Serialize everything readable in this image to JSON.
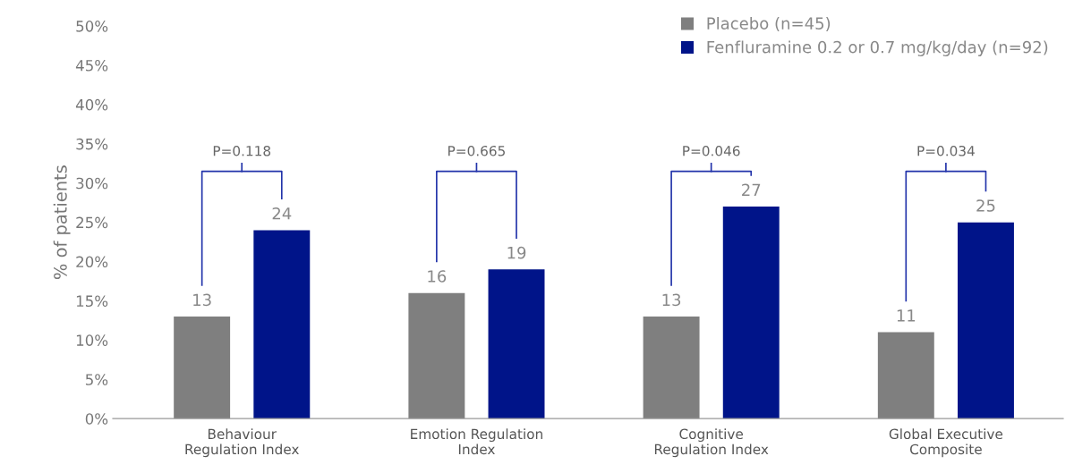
{
  "chart_data": {
    "type": "bar",
    "ylabel": "% of patients",
    "categories": [
      "Behaviour\nRegulation Index",
      "Emotion Regulation\nIndex",
      "Cognitive\nRegulation Index",
      "Global Executive\nComposite"
    ],
    "series": [
      {
        "name": "Placebo (n=45)",
        "color": "#7f7f7f",
        "values": [
          13,
          16,
          13,
          11
        ]
      },
      {
        "name": "Fenfluramine 0.2 or 0.7 mg/kg/day (n=92)",
        "color": "#001489",
        "values": [
          24,
          19,
          27,
          25
        ]
      }
    ],
    "ylim": [
      0,
      50
    ],
    "yticks": [
      {
        "value": 0,
        "label": "0%"
      },
      {
        "value": 5,
        "label": "5%"
      },
      {
        "value": 10,
        "label": "10%"
      },
      {
        "value": 15,
        "label": "15%"
      },
      {
        "value": 20,
        "label": "20%"
      },
      {
        "value": 25,
        "label": "25%"
      },
      {
        "value": 30,
        "label": "30%"
      },
      {
        "value": 35,
        "label": "35%"
      },
      {
        "value": 40,
        "label": "40%"
      },
      {
        "value": 45,
        "label": "45%"
      },
      {
        "value": 50,
        "label": "50%"
      }
    ],
    "data_labels": true,
    "legend": "top right",
    "grid": false,
    "annotations": [
      "P=0.118",
      "P=0.665",
      "P=0.046",
      "P=0.034"
    ]
  }
}
